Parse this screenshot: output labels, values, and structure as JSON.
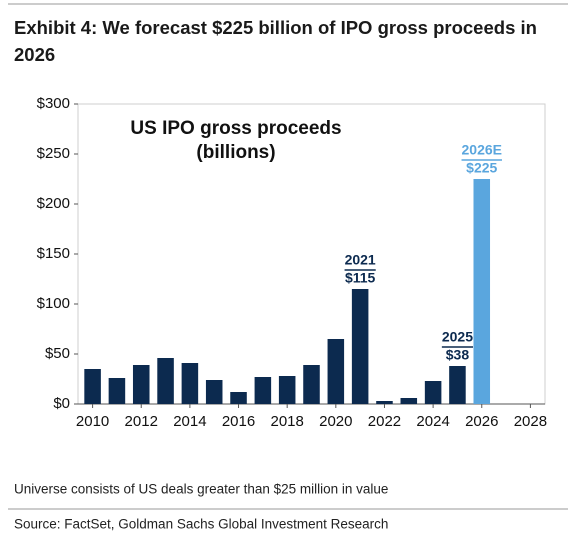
{
  "header": {
    "title": "Exhibit 4: We forecast $225 billion of IPO gross proceeds in 2026"
  },
  "chart_data": {
    "type": "bar",
    "inner_title": [
      "US IPO gross proceeds",
      "(billions)"
    ],
    "x": [
      2010,
      2011,
      2012,
      2013,
      2014,
      2015,
      2016,
      2017,
      2018,
      2019,
      2020,
      2021,
      2022,
      2023,
      2024,
      2025,
      2026
    ],
    "values": [
      35,
      26,
      39,
      46,
      41,
      24,
      12,
      27,
      28,
      39,
      65,
      115,
      3,
      6,
      23,
      38,
      225
    ],
    "colors": [
      "#0c2a4f",
      "#0c2a4f",
      "#0c2a4f",
      "#0c2a4f",
      "#0c2a4f",
      "#0c2a4f",
      "#0c2a4f",
      "#0c2a4f",
      "#0c2a4f",
      "#0c2a4f",
      "#0c2a4f",
      "#0c2a4f",
      "#0c2a4f",
      "#0c2a4f",
      "#0c2a4f",
      "#0c2a4f",
      "#5aa6de"
    ],
    "annotations": [
      {
        "x": 2021,
        "label": "2021",
        "text": "$115",
        "color": "#0c2a4f"
      },
      {
        "x": 2025,
        "label": "2025",
        "text": "$38",
        "color": "#0c2a4f"
      },
      {
        "x": 2026,
        "label": "2026E",
        "text": "$225",
        "color": "#5aa6de"
      }
    ],
    "xlim": [
      2009.4,
      2028.6
    ],
    "xticks": [
      2010,
      2012,
      2014,
      2016,
      2018,
      2020,
      2022,
      2024,
      2026,
      2028
    ],
    "ylim": [
      0,
      300
    ],
    "yticks": [
      {
        "value": 0,
        "label": "$0"
      },
      {
        "value": 50,
        "label": "$50"
      },
      {
        "value": 100,
        "label": "$100"
      },
      {
        "value": 150,
        "label": "$150"
      },
      {
        "value": 200,
        "label": "$200"
      },
      {
        "value": 250,
        "label": "$250"
      },
      {
        "value": 300,
        "label": "$300"
      }
    ]
  },
  "footer": {
    "note": "Universe consists of US deals greater than $25 million in value",
    "source": "Source: FactSet, Goldman Sachs Global Investment Research"
  }
}
